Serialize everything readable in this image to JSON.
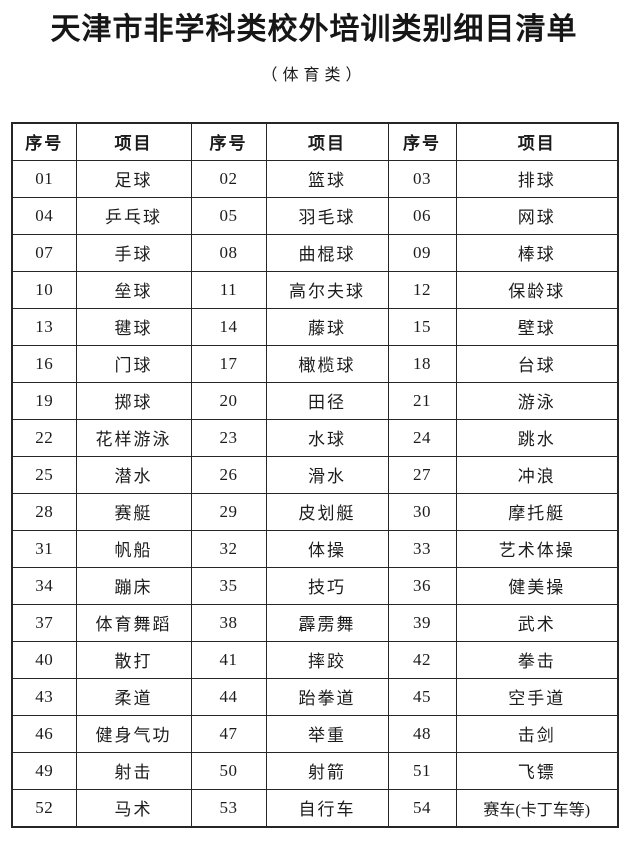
{
  "page": {
    "title": "天津市非学科类校外培训类别细目清单",
    "subtitle": "（体育类）"
  },
  "colors": {
    "background": "#ffffff",
    "text": "#1c1c1c",
    "border": "#262626"
  },
  "table": {
    "headers": [
      "序号",
      "项目",
      "序号",
      "项目",
      "序号",
      "项目"
    ],
    "rows": [
      [
        "01",
        "足球",
        "02",
        "篮球",
        "03",
        "排球"
      ],
      [
        "04",
        "乒乓球",
        "05",
        "羽毛球",
        "06",
        "网球"
      ],
      [
        "07",
        "手球",
        "08",
        "曲棍球",
        "09",
        "棒球"
      ],
      [
        "10",
        "垒球",
        "11",
        "高尔夫球",
        "12",
        "保龄球"
      ],
      [
        "13",
        "毽球",
        "14",
        "藤球",
        "15",
        "壁球"
      ],
      [
        "16",
        "门球",
        "17",
        "橄榄球",
        "18",
        "台球"
      ],
      [
        "19",
        "掷球",
        "20",
        "田径",
        "21",
        "游泳"
      ],
      [
        "22",
        "花样游泳",
        "23",
        "水球",
        "24",
        "跳水"
      ],
      [
        "25",
        "潜水",
        "26",
        "滑水",
        "27",
        "冲浪"
      ],
      [
        "28",
        "赛艇",
        "29",
        "皮划艇",
        "30",
        "摩托艇"
      ],
      [
        "31",
        "帆船",
        "32",
        "体操",
        "33",
        "艺术体操"
      ],
      [
        "34",
        "蹦床",
        "35",
        "技巧",
        "36",
        "健美操"
      ],
      [
        "37",
        "体育舞蹈",
        "38",
        "霹雳舞",
        "39",
        "武术"
      ],
      [
        "40",
        "散打",
        "41",
        "摔跤",
        "42",
        "拳击"
      ],
      [
        "43",
        "柔道",
        "44",
        "跆拳道",
        "45",
        "空手道"
      ],
      [
        "46",
        "健身气功",
        "47",
        "举重",
        "48",
        "击剑"
      ],
      [
        "49",
        "射击",
        "50",
        "射箭",
        "51",
        "飞镖"
      ],
      [
        "52",
        "马术",
        "53",
        "自行车",
        "54",
        "赛车(卡丁车等)"
      ]
    ]
  }
}
